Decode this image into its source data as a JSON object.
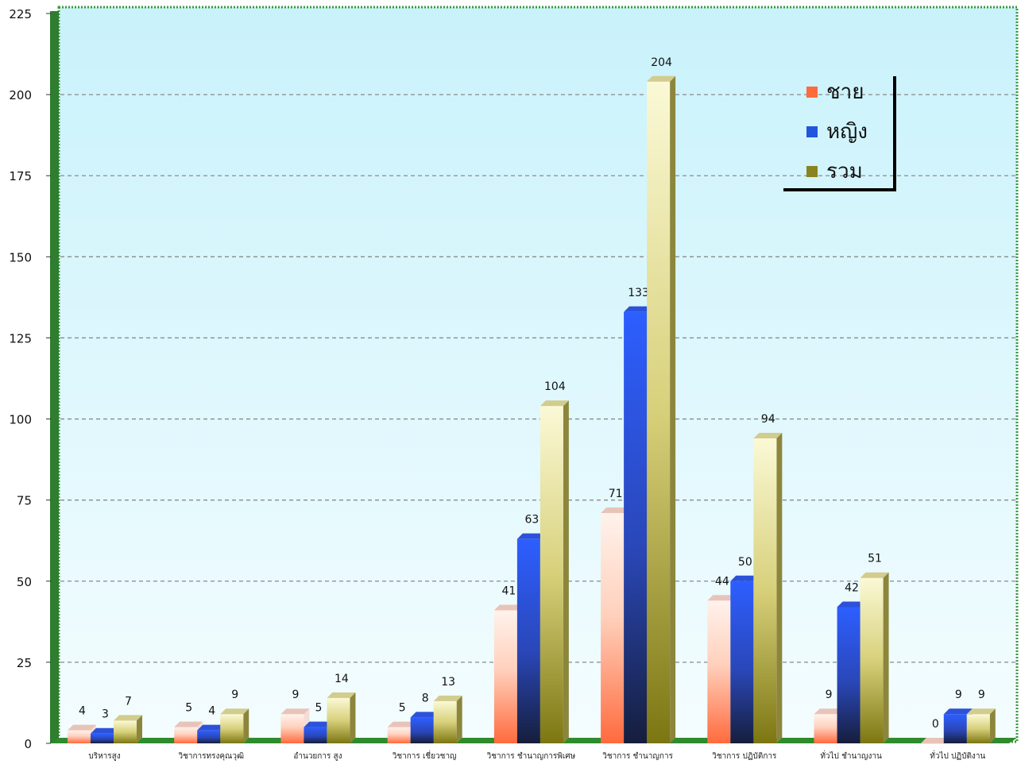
{
  "chart_data": {
    "type": "bar",
    "title": "",
    "xlabel": "",
    "ylabel": "",
    "ylim": [
      0,
      225
    ],
    "yticks": [
      0,
      25,
      50,
      75,
      100,
      125,
      150,
      175,
      200,
      225
    ],
    "grid": true,
    "legend_position": "top-right",
    "categories": [
      "บริหารสูง",
      "วิชาการทรงคุณวุฒิ",
      "อำนวยการ สูง",
      "วิชาการ เชี่ยวชาญ",
      "วิชาการ ชำนาญการพิเศษ",
      "วิชาการ ชำนาญการ",
      "วิชาการ ปฏิบัติการ",
      "ทั่วไป ชำนาญงาน",
      "ทั่วไป ปฏิบัติงาน"
    ],
    "series": [
      {
        "name": "ชาย",
        "color": "#ff6a3d",
        "values": [
          4,
          5,
          9,
          5,
          41,
          71,
          44,
          9,
          0
        ]
      },
      {
        "name": "หญิง",
        "color": "#2255dd",
        "values": [
          3,
          4,
          5,
          8,
          63,
          133,
          50,
          42,
          9
        ]
      },
      {
        "name": "รวม",
        "color": "#8a8420",
        "values": [
          7,
          9,
          14,
          13,
          104,
          204,
          94,
          51,
          9
        ]
      }
    ]
  }
}
